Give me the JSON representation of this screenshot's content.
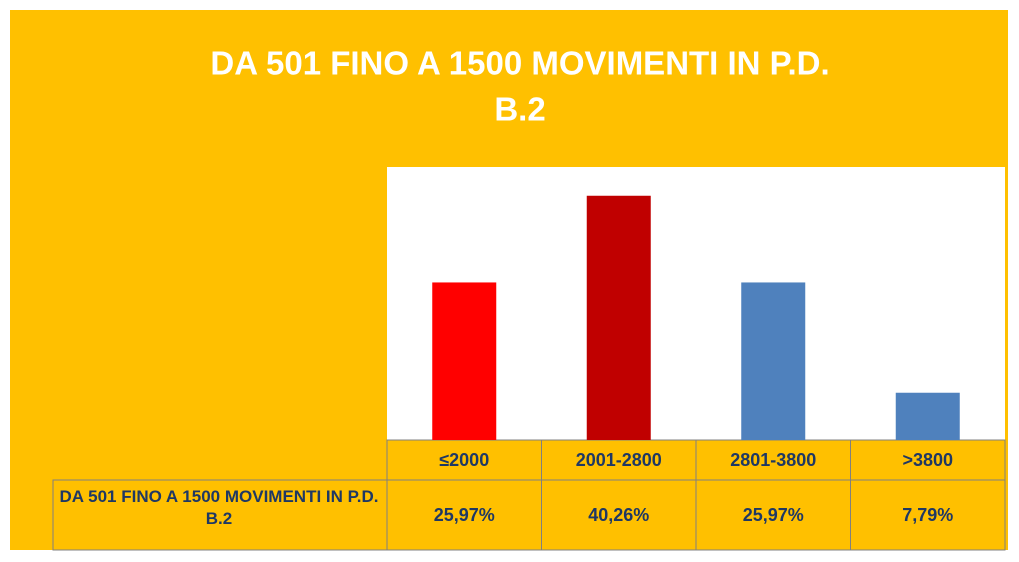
{
  "chart_data": {
    "type": "bar",
    "title": [
      "DA 501 FINO A 1500 MOVIMENTI IN P.D.",
      "B.2"
    ],
    "categories": [
      "≤2000",
      "2001-2800",
      "2801-3800",
      ">3800"
    ],
    "series": [
      {
        "name": "DA 501 FINO A 1500 MOVIMENTI IN P.D. B.2",
        "colors": [
          "#ff0000",
          "#c00000",
          "#4f81bd",
          "#4f81bd"
        ],
        "values": [
          25.97,
          40.26,
          25.97,
          7.79
        ],
        "value_labels": [
          "25,97%",
          "40,26%",
          "25,97%",
          "7,79%"
        ]
      }
    ],
    "ylim": [
      0,
      45
    ]
  }
}
